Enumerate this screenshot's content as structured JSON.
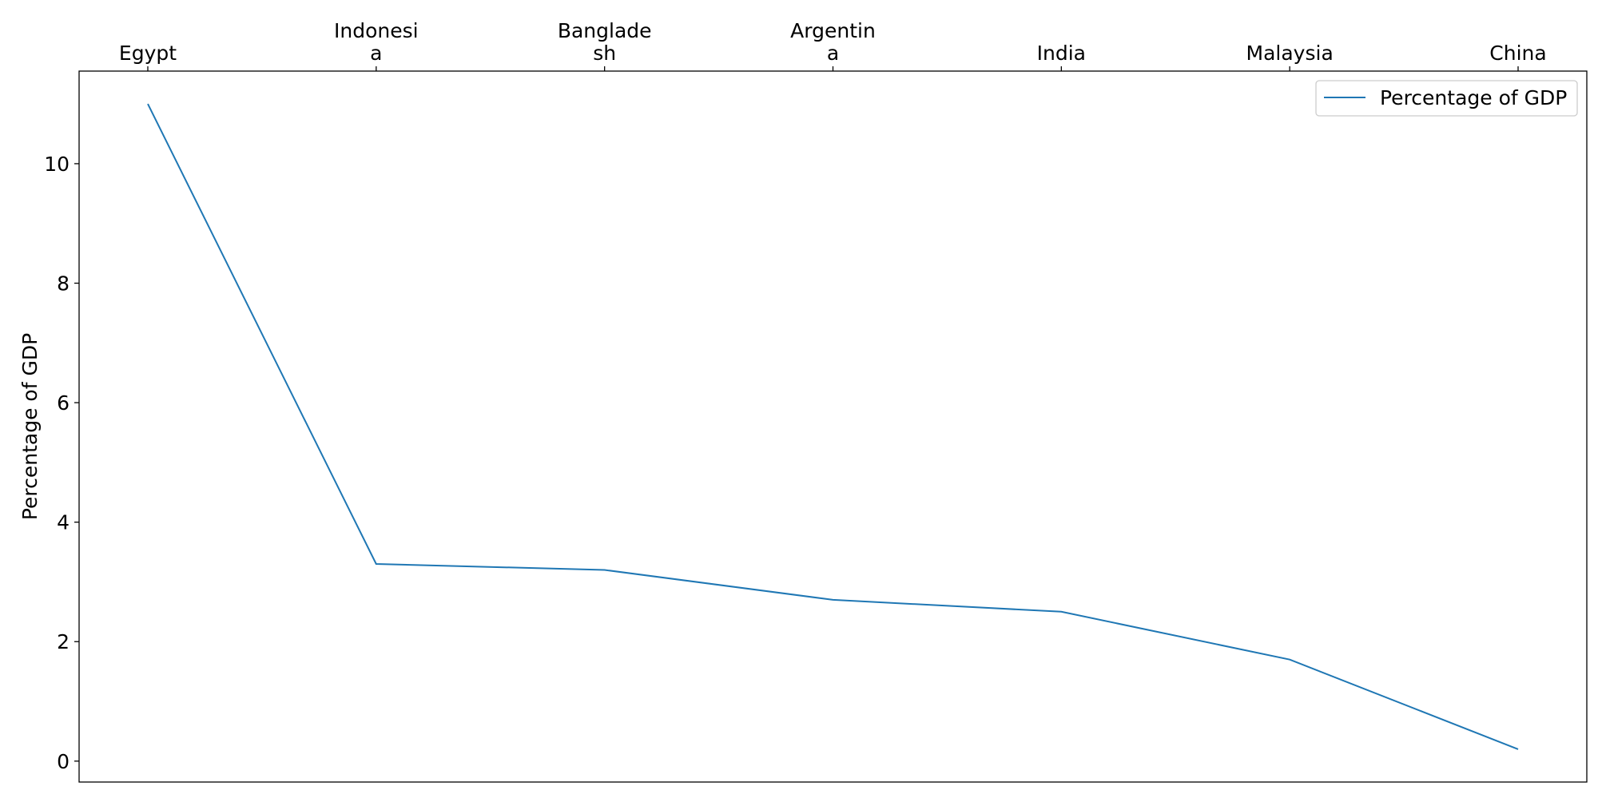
{
  "chart_data": {
    "type": "line",
    "title": "",
    "xlabel": "",
    "ylabel": "Percentage of GDP",
    "x_axis_position": "top",
    "categories": [
      [
        "Egypt"
      ],
      [
        "Indonesi",
        "a"
      ],
      [
        "Banglade",
        "sh"
      ],
      [
        "Argentin",
        "a"
      ],
      [
        "India"
      ],
      [
        "Malaysia"
      ],
      [
        "China"
      ]
    ],
    "series": [
      {
        "name": "Percentage of GDP",
        "color": "#1f77b4",
        "values": [
          11.0,
          3.3,
          3.2,
          2.7,
          2.5,
          1.7,
          0.2
        ]
      }
    ],
    "ylim": [
      -0.35,
      11.55
    ],
    "yticks": [
      "0",
      "2",
      "4",
      "6",
      "8",
      "10"
    ],
    "grid": false,
    "legend": "top-right"
  }
}
